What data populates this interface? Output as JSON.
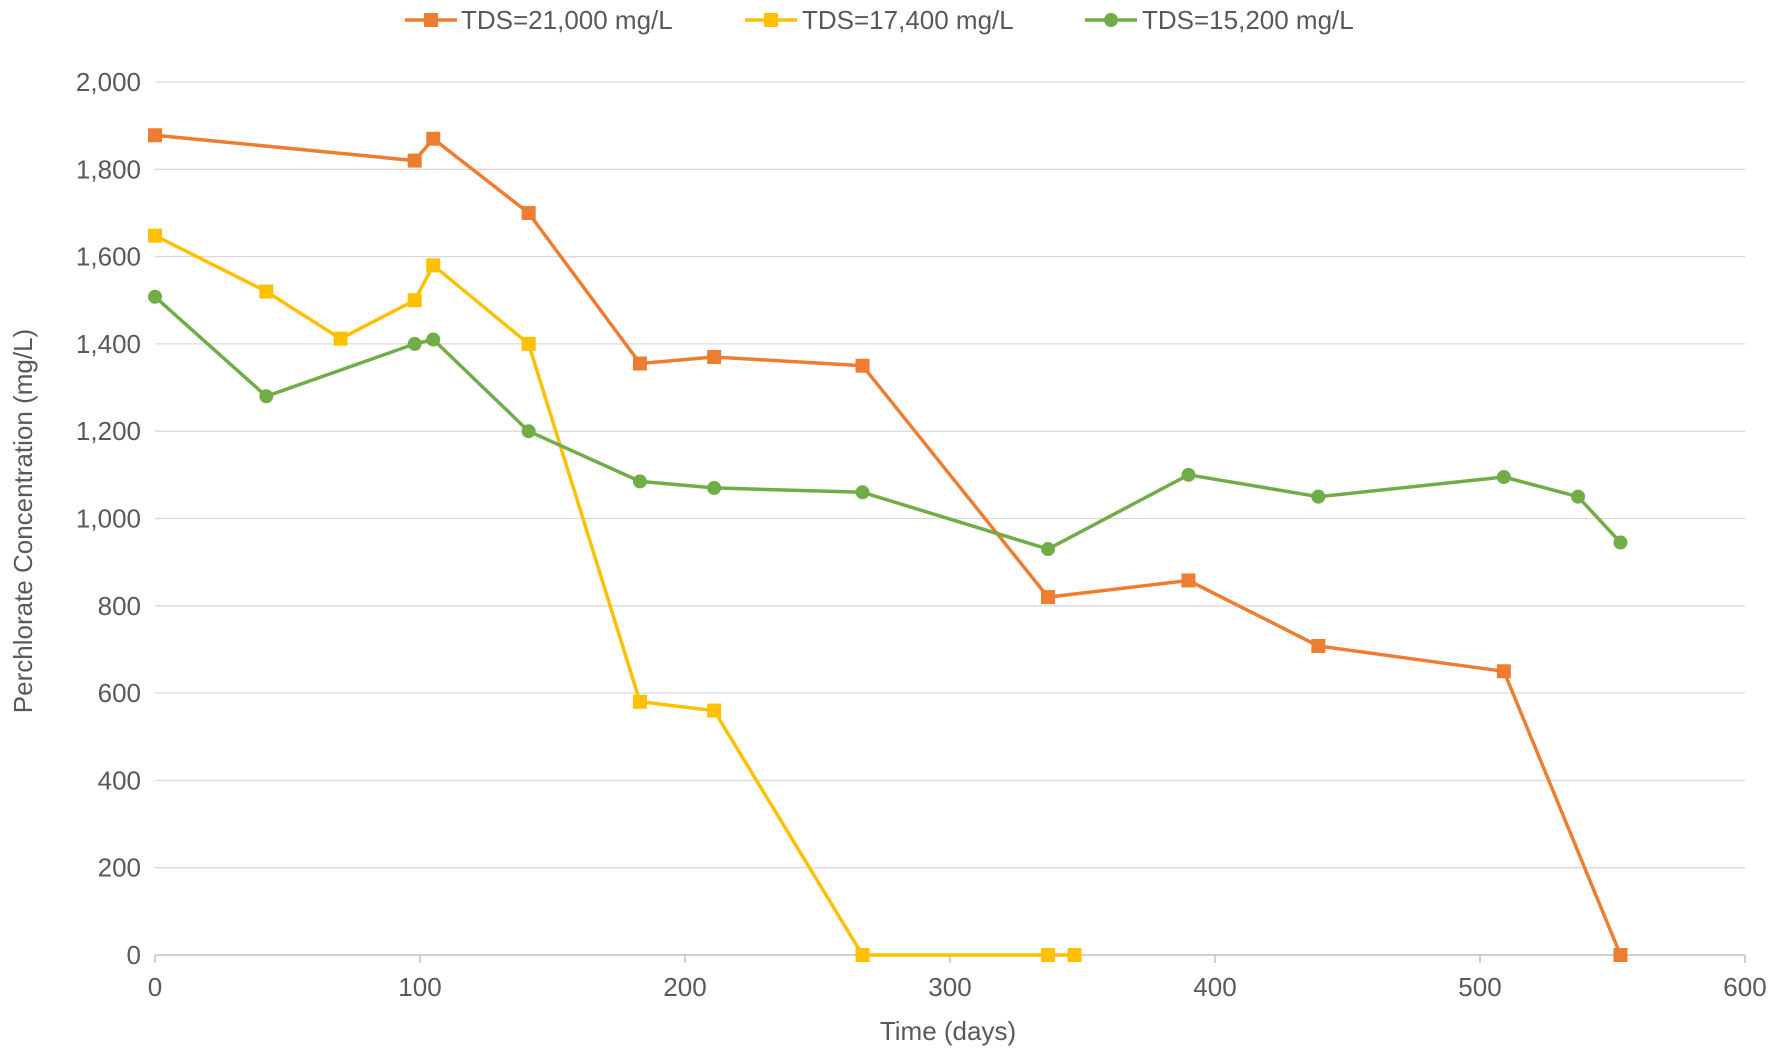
{
  "chart_data": {
    "type": "line",
    "xlabel": "Time (days)",
    "ylabel": "Perchlorate Concentration (mg/L)",
    "xlim": [
      0,
      600
    ],
    "ylim": [
      0,
      2000
    ],
    "x_ticks": [
      0,
      100,
      200,
      300,
      400,
      500,
      600
    ],
    "x_tick_labels": [
      "0",
      "100",
      "200",
      "300",
      "400",
      "500",
      "600"
    ],
    "y_ticks": [
      0,
      200,
      400,
      600,
      800,
      1000,
      1200,
      1400,
      1600,
      1800,
      2000
    ],
    "y_tick_labels": [
      "0",
      "200",
      "400",
      "600",
      "800",
      "1,000",
      "1,200",
      "1,400",
      "1,600",
      "1,800",
      "2,000"
    ],
    "grid": "horizontal",
    "legend_position": "top",
    "series": [
      {
        "name": "TDS=21,000 mg/L",
        "color": "#ED7D31",
        "marker": "square",
        "x": [
          0,
          98,
          105,
          141,
          183,
          211,
          267,
          337,
          390,
          439,
          509,
          553
        ],
        "y": [
          1878,
          1820,
          1870,
          1700,
          1355,
          1370,
          1350,
          820,
          858,
          708,
          650,
          0
        ]
      },
      {
        "name": "TDS=17,400 mg/L",
        "color": "#FFC000",
        "marker": "square",
        "x": [
          0,
          42,
          70,
          98,
          105,
          141,
          183,
          211,
          267,
          337,
          347
        ],
        "y": [
          1648,
          1520,
          1412,
          1500,
          1580,
          1400,
          580,
          560,
          0,
          0,
          0
        ]
      },
      {
        "name": "TDS=15,200 mg/L",
        "color": "#70AD47",
        "marker": "circle",
        "x": [
          0,
          42,
          98,
          105,
          141,
          183,
          211,
          267,
          337,
          390,
          439,
          509,
          537,
          553
        ],
        "y": [
          1508,
          1280,
          1400,
          1410,
          1200,
          1085,
          1070,
          1060,
          930,
          1100,
          1050,
          1095,
          1050,
          945
        ]
      }
    ]
  }
}
